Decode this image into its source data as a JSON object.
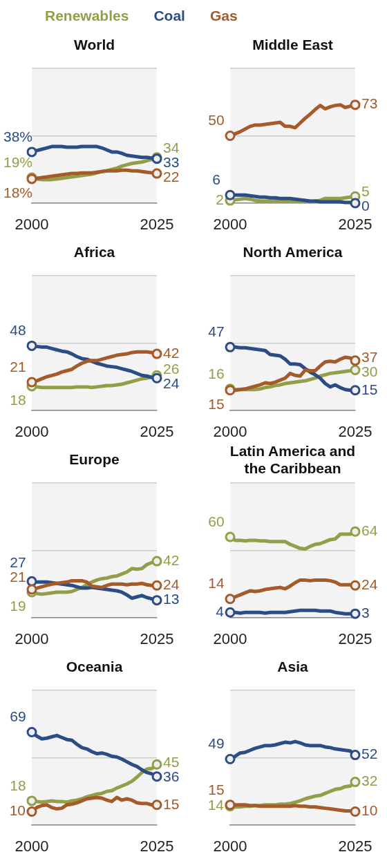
{
  "chart_data": [
    {
      "type": "line",
      "title": "World",
      "legend": "top",
      "grid": "y",
      "tick_labels": "x",
      "ylim": [
        0,
        100
      ],
      "yticks": [
        {
          "value": 0,
          "label": null
        },
        {
          "value": 50,
          "label": null
        },
        {
          "value": 100,
          "label": null
        }
      ],
      "categories": [
        "2000",
        null,
        null,
        null,
        null,
        null,
        null,
        null,
        null,
        null,
        null,
        null,
        null,
        null,
        null,
        null,
        null,
        null,
        null,
        null,
        null,
        null,
        null,
        null,
        null,
        "2025"
      ],
      "series": [
        {
          "name": "Renewables",
          "color": "#949d48",
          "values": [
            19,
            18,
            17.5,
            17.5,
            17.5,
            18,
            18.5,
            19,
            19.5,
            20,
            20.5,
            21,
            21.5,
            22.5,
            23.5,
            24,
            25,
            26,
            27.5,
            28.5,
            29.5,
            30,
            30.5,
            31.5,
            32.5,
            34
          ],
          "value_labels": [
            "19%",
            null,
            null,
            null,
            null,
            null,
            null,
            null,
            null,
            null,
            null,
            null,
            null,
            null,
            null,
            null,
            null,
            null,
            null,
            null,
            null,
            null,
            null,
            null,
            null,
            "34"
          ]
        },
        {
          "name": "Coal",
          "color": "#2b4c84",
          "values": [
            38,
            39,
            40,
            41,
            42,
            42,
            42,
            41.5,
            41.5,
            41.5,
            42,
            42,
            42,
            42,
            41,
            39.5,
            38,
            38,
            37,
            35.5,
            35,
            34.5,
            34,
            34,
            33.5,
            33
          ],
          "value_labels": [
            "38%",
            null,
            null,
            null,
            null,
            null,
            null,
            null,
            null,
            null,
            null,
            null,
            null,
            null,
            null,
            null,
            null,
            null,
            null,
            null,
            null,
            null,
            null,
            null,
            null,
            "33"
          ]
        },
        {
          "name": "Gas",
          "color": "#a45a29",
          "values": [
            18,
            18.5,
            19,
            19.5,
            20,
            20.5,
            21,
            21.5,
            22,
            22,
            22.5,
            22.5,
            22.5,
            23,
            23.5,
            24,
            24,
            24,
            24.5,
            24.5,
            24,
            24,
            23.5,
            23,
            22.5,
            22
          ],
          "value_labels": [
            "18%",
            null,
            null,
            null,
            null,
            null,
            null,
            null,
            null,
            null,
            null,
            null,
            null,
            null,
            null,
            null,
            null,
            null,
            null,
            null,
            null,
            null,
            null,
            null,
            null,
            "22"
          ]
        }
      ]
    },
    {
      "type": "line",
      "title": "Middle East",
      "grid": "y",
      "tick_labels": "x",
      "ylim": [
        0,
        100
      ],
      "yticks": [
        {
          "value": 0,
          "label": null
        },
        {
          "value": 50,
          "label": null
        },
        {
          "value": 100,
          "label": null
        }
      ],
      "categories": [
        "2000",
        null,
        null,
        null,
        null,
        null,
        null,
        null,
        null,
        null,
        null,
        null,
        null,
        null,
        null,
        null,
        null,
        null,
        null,
        null,
        null,
        null,
        null,
        null,
        null,
        "2025"
      ],
      "series": [
        {
          "color": "#949d48",
          "values": [
            2,
            2.5,
            3,
            3.5,
            3,
            2,
            1.5,
            1.5,
            1.5,
            1.5,
            1.5,
            1.5,
            1.5,
            1.5,
            1.5,
            1.5,
            1,
            1.5,
            2,
            3.5,
            3.5,
            3.5,
            3.5,
            4,
            4.5,
            5
          ],
          "value_labels": [
            "2",
            null,
            null,
            null,
            null,
            null,
            null,
            null,
            null,
            null,
            null,
            null,
            null,
            null,
            null,
            null,
            null,
            null,
            null,
            null,
            null,
            null,
            null,
            null,
            null,
            "5"
          ]
        },
        {
          "color": "#2b4c84",
          "values": [
            6,
            6,
            6,
            6,
            5.5,
            5,
            4.5,
            4.5,
            4,
            4,
            3.5,
            3.5,
            3.5,
            3,
            2.5,
            2,
            1.5,
            1.5,
            1,
            1,
            1,
            1,
            1,
            0.5,
            0.5,
            0
          ],
          "value_labels": [
            "6",
            null,
            null,
            null,
            null,
            null,
            null,
            null,
            null,
            null,
            null,
            null,
            null,
            null,
            null,
            null,
            null,
            null,
            null,
            null,
            null,
            null,
            null,
            null,
            null,
            "0"
          ]
        },
        {
          "color": "#a45a29",
          "values": [
            50,
            51.5,
            53,
            55,
            57,
            58,
            58,
            58.5,
            59,
            59.5,
            60,
            57,
            57,
            56,
            59.5,
            63,
            66,
            69.5,
            72.5,
            70,
            71.5,
            72.5,
            73,
            71,
            72,
            73
          ],
          "value_labels": [
            "50",
            null,
            null,
            null,
            null,
            null,
            null,
            null,
            null,
            null,
            null,
            null,
            null,
            null,
            null,
            null,
            null,
            null,
            null,
            null,
            null,
            null,
            null,
            null,
            null,
            "73"
          ]
        }
      ]
    },
    {
      "type": "line",
      "title": "Africa",
      "grid": "y",
      "tick_labels": "x",
      "ylim": [
        0,
        100
      ],
      "yticks": [
        {
          "value": 0,
          "label": null
        },
        {
          "value": 50,
          "label": null
        },
        {
          "value": 100,
          "label": null
        }
      ],
      "categories": [
        "2000",
        null,
        null,
        null,
        null,
        null,
        null,
        null,
        null,
        null,
        null,
        null,
        null,
        null,
        null,
        null,
        null,
        null,
        null,
        null,
        null,
        null,
        null,
        null,
        null,
        "2025"
      ],
      "series": [
        {
          "color": "#949d48",
          "values": [
            18,
            17.5,
            17,
            17,
            17,
            17,
            17,
            17,
            17,
            17.5,
            17.5,
            17.5,
            17,
            17.5,
            18,
            18.5,
            18.5,
            19,
            19.5,
            20.5,
            21.5,
            22.5,
            23.5,
            24,
            25,
            26
          ],
          "value_labels": [
            "18",
            null,
            null,
            null,
            null,
            null,
            null,
            null,
            null,
            null,
            null,
            null,
            null,
            null,
            null,
            null,
            null,
            null,
            null,
            null,
            null,
            null,
            null,
            null,
            null,
            "26"
          ]
        },
        {
          "color": "#2b4c84",
          "values": [
            48,
            47.5,
            47,
            47,
            46,
            45,
            44,
            43.5,
            42,
            40,
            38.5,
            38,
            36.5,
            35,
            34,
            33,
            32.5,
            32,
            31,
            30,
            29,
            27.5,
            26,
            25.5,
            24.5,
            24
          ],
          "value_labels": [
            "48",
            null,
            null,
            null,
            null,
            null,
            null,
            null,
            null,
            null,
            null,
            null,
            null,
            null,
            null,
            null,
            null,
            null,
            null,
            null,
            null,
            null,
            null,
            null,
            null,
            "24"
          ]
        },
        {
          "color": "#a45a29",
          "values": [
            21,
            22,
            23.5,
            25,
            26,
            27,
            28.5,
            29.5,
            30.5,
            33,
            35,
            36.5,
            37,
            37,
            38,
            39,
            40,
            41,
            41.5,
            42,
            43,
            43.5,
            43.5,
            43.5,
            43,
            42
          ],
          "value_labels": [
            "21",
            null,
            null,
            null,
            null,
            null,
            null,
            null,
            null,
            null,
            null,
            null,
            null,
            null,
            null,
            null,
            null,
            null,
            null,
            null,
            null,
            null,
            null,
            null,
            null,
            "42"
          ]
        }
      ]
    },
    {
      "type": "line",
      "title": "North America",
      "grid": "y",
      "tick_labels": "x",
      "ylim": [
        0,
        100
      ],
      "yticks": [
        {
          "value": 0,
          "label": null
        },
        {
          "value": 50,
          "label": null
        },
        {
          "value": 100,
          "label": null
        }
      ],
      "categories": [
        "2000",
        null,
        null,
        null,
        null,
        null,
        null,
        null,
        null,
        null,
        null,
        null,
        null,
        null,
        null,
        null,
        null,
        null,
        null,
        null,
        null,
        null,
        null,
        null,
        null,
        "2025"
      ],
      "series": [
        {
          "color": "#949d48",
          "values": [
            16,
            15.5,
            15.5,
            15.5,
            15.5,
            15.5,
            16,
            17,
            17.5,
            18.5,
            19,
            20,
            20.5,
            21,
            21.5,
            22,
            23,
            24,
            25.5,
            26.5,
            27.5,
            28,
            28.5,
            29,
            29.5,
            30
          ],
          "value_labels": [
            "16",
            null,
            null,
            null,
            null,
            null,
            null,
            null,
            null,
            null,
            null,
            null,
            null,
            null,
            null,
            null,
            null,
            null,
            null,
            null,
            null,
            null,
            null,
            null,
            null,
            "30"
          ]
        },
        {
          "color": "#2b4c84",
          "values": [
            47,
            47,
            46.5,
            46.5,
            46,
            45.5,
            45,
            44.5,
            41.5,
            41,
            40.5,
            38,
            34.5,
            34.5,
            34,
            31,
            28.5,
            26.5,
            24,
            20,
            17.5,
            19,
            17,
            15.5,
            15,
            15
          ],
          "value_labels": [
            "47",
            null,
            null,
            null,
            null,
            null,
            null,
            null,
            null,
            null,
            null,
            null,
            null,
            null,
            null,
            null,
            null,
            null,
            null,
            null,
            null,
            null,
            null,
            null,
            null,
            "15"
          ]
        },
        {
          "color": "#a45a29",
          "values": [
            15,
            15,
            15.5,
            16,
            17,
            18,
            19,
            20.5,
            20,
            21,
            22.5,
            24,
            27.5,
            26,
            25.5,
            30,
            29.5,
            29.5,
            33,
            36,
            36.5,
            36,
            38,
            39.5,
            39,
            37
          ],
          "value_labels": [
            "15",
            null,
            null,
            null,
            null,
            null,
            null,
            null,
            null,
            null,
            null,
            null,
            null,
            null,
            null,
            null,
            null,
            null,
            null,
            null,
            null,
            null,
            null,
            null,
            null,
            "37"
          ]
        }
      ]
    },
    {
      "type": "line",
      "title": "Europe",
      "grid": "y",
      "tick_labels": "x",
      "ylim": [
        0,
        100
      ],
      "yticks": [
        {
          "value": 0,
          "label": null
        },
        {
          "value": 50,
          "label": null
        },
        {
          "value": 100,
          "label": null
        }
      ],
      "categories": [
        "2000",
        null,
        null,
        null,
        null,
        null,
        null,
        null,
        null,
        null,
        null,
        null,
        null,
        null,
        null,
        null,
        null,
        null,
        null,
        null,
        null,
        null,
        null,
        null,
        null,
        "2025"
      ],
      "series": [
        {
          "color": "#949d48",
          "values": [
            19,
            18,
            17.5,
            18,
            18.5,
            19,
            19,
            19,
            19.5,
            21,
            22.5,
            24.5,
            26.5,
            28,
            29,
            29.5,
            30.5,
            31,
            32.5,
            34,
            36.5,
            36,
            36.5,
            39.5,
            41,
            42
          ],
          "value_labels": [
            "19",
            null,
            null,
            null,
            null,
            null,
            null,
            null,
            null,
            null,
            null,
            null,
            null,
            null,
            null,
            null,
            null,
            null,
            null,
            null,
            null,
            null,
            null,
            null,
            null,
            "42"
          ]
        },
        {
          "color": "#2b4c84",
          "values": [
            27,
            26.5,
            26.5,
            26.5,
            26,
            25.5,
            25,
            24.5,
            24,
            23,
            22,
            22,
            22.5,
            22,
            21.5,
            21,
            20.5,
            20,
            19,
            17,
            14.5,
            15.5,
            16.5,
            15,
            14,
            13
          ],
          "value_labels": [
            "27",
            null,
            null,
            null,
            null,
            null,
            null,
            null,
            null,
            null,
            null,
            null,
            null,
            null,
            null,
            null,
            null,
            null,
            null,
            null,
            null,
            null,
            null,
            null,
            null,
            "13"
          ]
        },
        {
          "color": "#a45a29",
          "values": [
            21,
            22,
            23,
            24,
            25,
            25.5,
            26,
            26.5,
            27.5,
            27.5,
            27.5,
            26.5,
            23.5,
            23,
            22.5,
            24,
            25,
            25,
            25,
            24.5,
            25,
            25,
            25.5,
            24.5,
            24,
            24
          ],
          "value_labels": [
            "21",
            null,
            null,
            null,
            null,
            null,
            null,
            null,
            null,
            null,
            null,
            null,
            null,
            null,
            null,
            null,
            null,
            null,
            null,
            null,
            null,
            null,
            null,
            null,
            null,
            "24"
          ]
        }
      ]
    },
    {
      "type": "line",
      "title": "Latin America and the Caribbean",
      "grid": "y",
      "tick_labels": "x",
      "ylim": [
        0,
        100
      ],
      "yticks": [
        {
          "value": 0,
          "label": null
        },
        {
          "value": 50,
          "label": null
        },
        {
          "value": 100,
          "label": null
        }
      ],
      "categories": [
        "2000",
        null,
        null,
        null,
        null,
        null,
        null,
        null,
        null,
        null,
        null,
        null,
        null,
        null,
        null,
        null,
        null,
        null,
        null,
        null,
        null,
        null,
        null,
        null,
        null,
        "2025"
      ],
      "series": [
        {
          "color": "#949d48",
          "values": [
            60,
            57.5,
            57.5,
            57,
            57.5,
            57.5,
            57,
            57,
            56.5,
            56.5,
            56.5,
            56.5,
            54.5,
            53,
            51.5,
            51,
            53,
            54.5,
            55,
            56.5,
            58,
            58.5,
            62,
            62,
            62,
            64
          ],
          "value_labels": [
            "60",
            null,
            null,
            null,
            null,
            null,
            null,
            null,
            null,
            null,
            null,
            null,
            null,
            null,
            null,
            null,
            null,
            null,
            null,
            null,
            null,
            null,
            null,
            null,
            null,
            "64"
          ]
        },
        {
          "color": "#2b4c84",
          "values": [
            4,
            4,
            3.5,
            4,
            4,
            4,
            4,
            3.5,
            4,
            4,
            4,
            4,
            4.5,
            5,
            5.5,
            5.5,
            5.5,
            5.5,
            5,
            5,
            5,
            4,
            3.5,
            3,
            3,
            3
          ],
          "value_labels": [
            "4",
            null,
            null,
            null,
            null,
            null,
            null,
            null,
            null,
            null,
            null,
            null,
            null,
            null,
            null,
            null,
            null,
            null,
            null,
            null,
            null,
            null,
            null,
            null,
            null,
            "3"
          ]
        },
        {
          "color": "#a45a29",
          "values": [
            14,
            15.5,
            17,
            18.5,
            20,
            19.5,
            20,
            21,
            21.5,
            22,
            22.5,
            21.5,
            23.5,
            26,
            28,
            28,
            27.5,
            28,
            28,
            28,
            27.5,
            26.5,
            24.5,
            24.5,
            24.5,
            24
          ],
          "value_labels": [
            "14",
            null,
            null,
            null,
            null,
            null,
            null,
            null,
            null,
            null,
            null,
            null,
            null,
            null,
            null,
            null,
            null,
            null,
            null,
            null,
            null,
            null,
            null,
            null,
            null,
            "24"
          ]
        }
      ]
    },
    {
      "type": "line",
      "title": "Oceania",
      "grid": "y",
      "tick_labels": "x",
      "ylim": [
        0,
        100
      ],
      "yticks": [
        {
          "value": 0,
          "label": null
        },
        {
          "value": 50,
          "label": null
        },
        {
          "value": 100,
          "label": null
        }
      ],
      "categories": [
        "2000",
        null,
        null,
        null,
        null,
        null,
        null,
        null,
        null,
        null,
        null,
        null,
        null,
        null,
        null,
        null,
        null,
        null,
        null,
        null,
        null,
        null,
        null,
        null,
        null,
        "2025"
      ],
      "series": [
        {
          "color": "#949d48",
          "values": [
            18,
            17.5,
            17,
            17.5,
            18,
            17.5,
            17.5,
            17,
            18,
            18.5,
            19.5,
            21,
            22,
            23,
            23.5,
            25,
            25.5,
            27.5,
            29,
            30.5,
            32.5,
            35.5,
            39,
            41.5,
            42,
            45
          ],
          "value_labels": [
            "18",
            null,
            null,
            null,
            null,
            null,
            null,
            null,
            null,
            null,
            null,
            null,
            null,
            null,
            null,
            null,
            null,
            null,
            null,
            null,
            null,
            null,
            null,
            null,
            null,
            "45"
          ]
        },
        {
          "color": "#2b4c84",
          "values": [
            69,
            66,
            64,
            64.5,
            65.5,
            66.5,
            65,
            63.5,
            63,
            60,
            57.5,
            56.5,
            54.5,
            53,
            53.5,
            52.5,
            51,
            50.5,
            49,
            47,
            45,
            43.5,
            41,
            39,
            38,
            36
          ],
          "value_labels": [
            "69",
            null,
            null,
            null,
            null,
            null,
            null,
            null,
            null,
            null,
            null,
            null,
            null,
            null,
            null,
            null,
            null,
            null,
            null,
            null,
            null,
            null,
            null,
            null,
            null,
            "36"
          ]
        },
        {
          "color": "#a45a29",
          "values": [
            10,
            13,
            14.5,
            15,
            13,
            12,
            12.5,
            15,
            15.5,
            16.5,
            18,
            19.5,
            20,
            20.5,
            20,
            18.5,
            17.5,
            20.5,
            18.5,
            19.5,
            18.5,
            16.5,
            16,
            16,
            15,
            15
          ],
          "value_labels": [
            "10",
            null,
            null,
            null,
            null,
            null,
            null,
            null,
            null,
            null,
            null,
            null,
            null,
            null,
            null,
            null,
            null,
            null,
            null,
            null,
            null,
            null,
            null,
            null,
            null,
            "15"
          ]
        }
      ]
    },
    {
      "type": "line",
      "title": "Asia",
      "grid": "y",
      "tick_labels": "x",
      "ylim": [
        0,
        100
      ],
      "yticks": [
        {
          "value": 0,
          "label": null
        },
        {
          "value": 50,
          "label": null
        },
        {
          "value": 100,
          "label": null
        }
      ],
      "categories": [
        "2000",
        null,
        null,
        null,
        null,
        null,
        null,
        null,
        null,
        null,
        null,
        null,
        null,
        null,
        null,
        null,
        null,
        null,
        null,
        null,
        null,
        null,
        null,
        null,
        null,
        "2025"
      ],
      "series": [
        {
          "color": "#949d48",
          "values": [
            14,
            13.5,
            13.5,
            14,
            14,
            14.5,
            14.5,
            15,
            15,
            15,
            15.5,
            15.5,
            16,
            17,
            18,
            19.5,
            20.5,
            21.5,
            22,
            23.5,
            25,
            26.5,
            27,
            28.5,
            29,
            32
          ],
          "value_labels": [
            "14",
            null,
            null,
            null,
            null,
            null,
            null,
            null,
            null,
            null,
            null,
            null,
            null,
            null,
            null,
            null,
            null,
            null,
            null,
            null,
            null,
            null,
            null,
            null,
            null,
            "32"
          ]
        },
        {
          "color": "#2b4c84",
          "values": [
            49,
            51,
            53.5,
            54,
            55.5,
            57,
            58,
            59,
            59,
            59.5,
            60.5,
            61.5,
            61,
            62,
            61,
            59.5,
            59,
            59,
            59,
            58,
            57.5,
            56.5,
            56,
            55.5,
            55,
            52
          ],
          "value_labels": [
            "49",
            null,
            null,
            null,
            null,
            null,
            null,
            null,
            null,
            null,
            null,
            null,
            null,
            null,
            null,
            null,
            null,
            null,
            null,
            null,
            null,
            null,
            null,
            null,
            null,
            "52"
          ]
        },
        {
          "color": "#a45a29",
          "values": [
            15,
            15,
            15,
            15,
            14.5,
            14.5,
            14,
            14,
            14,
            14,
            14,
            14,
            14,
            14.5,
            14,
            14,
            13.5,
            13.5,
            13,
            12.5,
            12,
            11.5,
            11,
            10.5,
            10.5,
            10
          ],
          "value_labels": [
            "15",
            null,
            null,
            null,
            null,
            null,
            null,
            null,
            null,
            null,
            null,
            null,
            null,
            null,
            null,
            null,
            null,
            null,
            null,
            null,
            null,
            null,
            null,
            null,
            null,
            "10"
          ]
        }
      ]
    }
  ]
}
